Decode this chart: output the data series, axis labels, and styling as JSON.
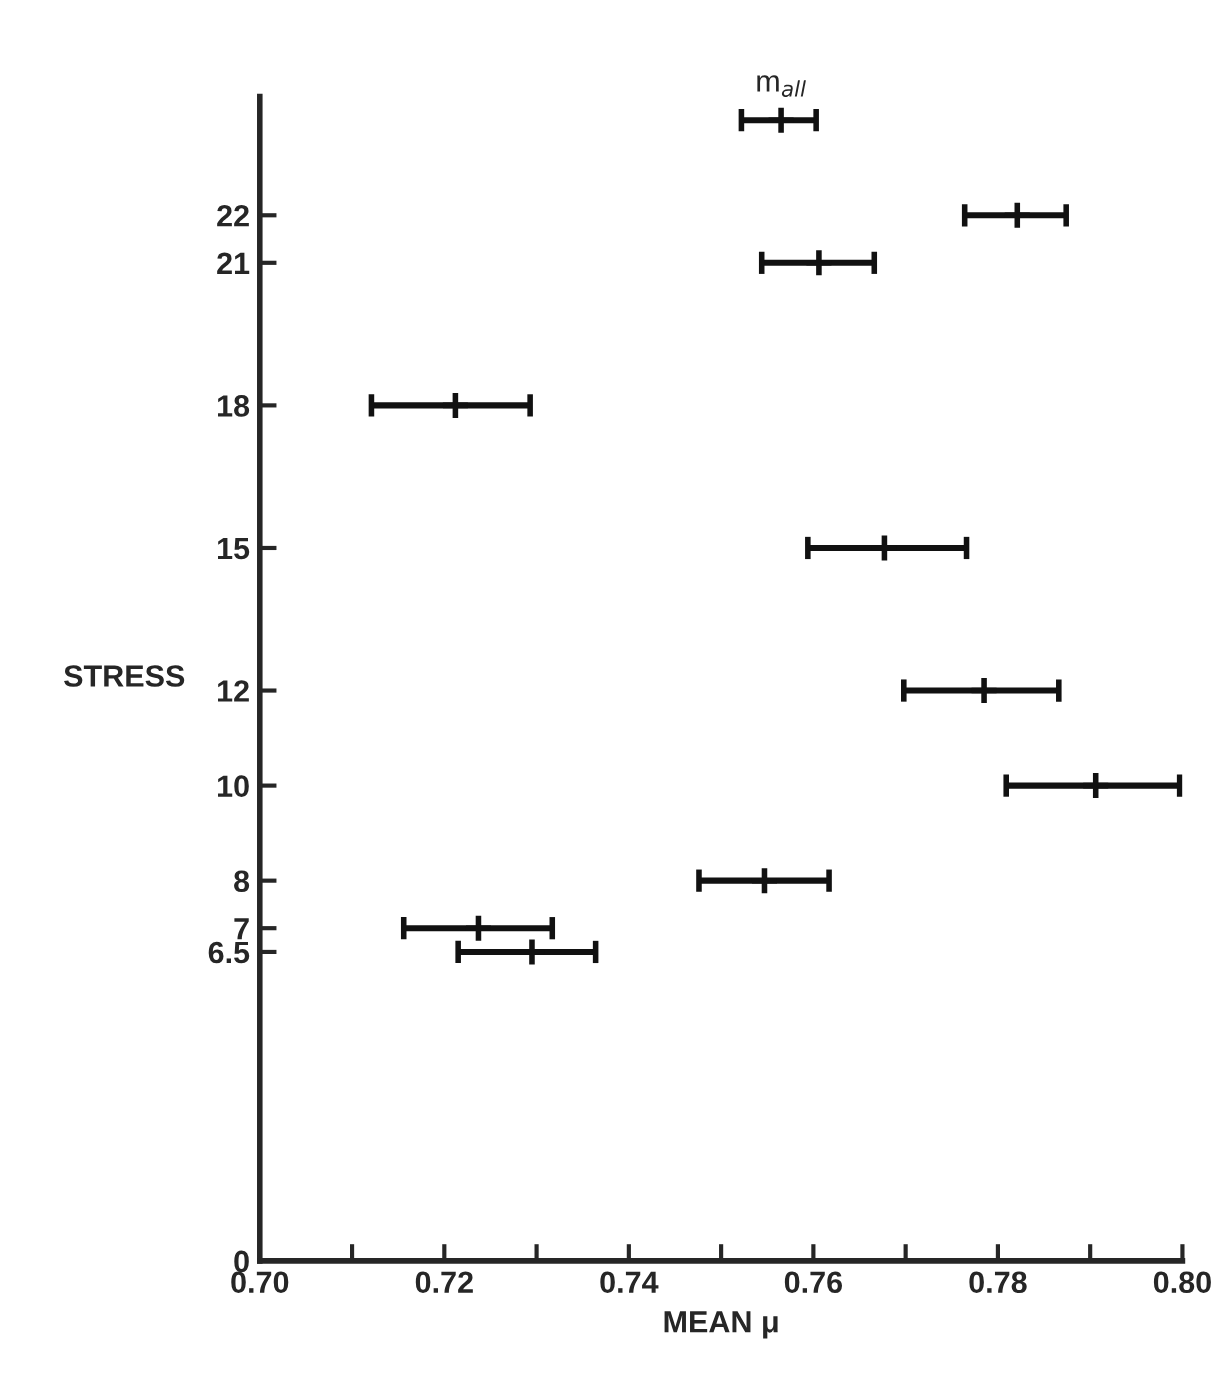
{
  "chart_data": {
    "type": "scatter",
    "xlabel": "MEAN μ",
    "ylabel": "STRESS",
    "series": [
      {
        "color": "#111111",
        "x": [
          0.7565,
          0.7821,
          0.7606,
          0.7212,
          0.7677,
          0.7785,
          0.7906,
          0.7547,
          0.7237,
          0.7295
        ],
        "values": [
          24,
          22,
          21,
          18,
          15,
          12,
          10,
          8,
          7,
          6.5
        ],
        "xerrors": [
          [
            0.7522,
            0.7603
          ],
          [
            0.7764,
            0.7874
          ],
          [
            0.7544,
            0.7666
          ],
          [
            0.7121,
            0.7293
          ],
          [
            0.7594,
            0.7766
          ],
          [
            0.7698,
            0.7866
          ],
          [
            0.7809,
            0.7997
          ],
          [
            0.7476,
            0.7617
          ],
          [
            0.7156,
            0.7317
          ],
          [
            0.7215,
            0.7364
          ]
        ]
      }
    ],
    "annotations": [
      {
        "text": "m$_{all}$",
        "x": 0.7565,
        "y": 24
      }
    ],
    "xlim": [
      0.7,
      0.8
    ],
    "ylim": [
      0,
      24.5
    ],
    "xticks": [
      {
        "value": 0.7,
        "label": "0.70"
      },
      {
        "value": 0.71,
        "label": null
      },
      0.72,
      {
        "value": 0.73,
        "label": null
      },
      0.74,
      {
        "value": 0.75,
        "label": null
      },
      0.76,
      {
        "value": 0.77,
        "label": null
      },
      0.78,
      {
        "value": 0.79,
        "label": null
      },
      {
        "value": 0.8,
        "label": "0.80"
      }
    ],
    "yticks": [
      0,
      6.5,
      7,
      8,
      10,
      12,
      15,
      18,
      21,
      22
    ],
    "marker": "cross",
    "grid": false,
    "legend": false
  }
}
